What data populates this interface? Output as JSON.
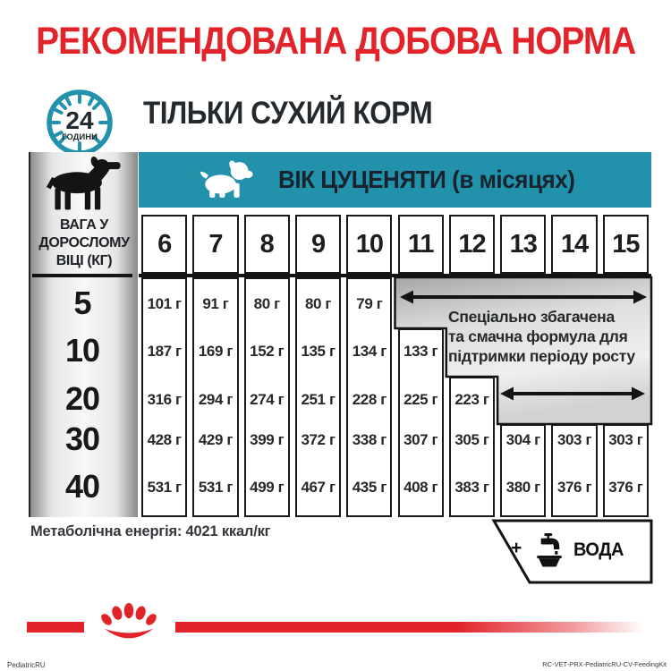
{
  "header": {
    "title": "РЕКОМЕНДОВАНА ДОБОВА НОРМА",
    "clock": {
      "number": "24",
      "caption": "ГОДИНИ"
    },
    "subtitle": "ТІЛЬКИ СУХИЙ КОРМ"
  },
  "table": {
    "corner_label_lines": [
      "ВАГА У",
      "ДОРОСЛОМУ",
      "ВІЦІ (КГ)"
    ],
    "age_header": "ВІК ЦУЦЕНЯТИ (в місяцях)",
    "months": [
      "6",
      "7",
      "8",
      "9",
      "10",
      "11",
      "12",
      "13",
      "14",
      "15"
    ],
    "weights": [
      "5",
      "10",
      "20",
      "30",
      "40"
    ],
    "values": [
      [
        "101 г",
        "91 г",
        "80 г",
        "80 г",
        "79 г",
        "",
        "",
        "",
        "",
        ""
      ],
      [
        "187 г",
        "169 г",
        "152 г",
        "135 г",
        "134 г",
        "133 г",
        "",
        "",
        "",
        ""
      ],
      [
        "316 г",
        "294 г",
        "274 г",
        "251 г",
        "228 г",
        "225 г",
        "223 г",
        "",
        "",
        ""
      ],
      [
        "428 г",
        "429 г",
        "399 г",
        "372 г",
        "338 г",
        "307 г",
        "305 г",
        "304 г",
        "303 г",
        "303 г"
      ],
      [
        "531 г",
        "531 г",
        "499 г",
        "467 г",
        "435 г",
        "408 г",
        "383 г",
        "380 г",
        "376 г",
        "376 г"
      ]
    ],
    "callout_lines": [
      "Спеціально збагачена",
      "та смачна формула для",
      "підтримки періоду росту"
    ]
  },
  "footer": {
    "energy_note": "Метаболічна енергія: 4021 ккал/кг",
    "water_plus": "+",
    "water_label": "ВОДА",
    "fineprint_left": "PediatricRU",
    "fineprint_right": "RC-VET-PRX-PediatricRU-CV-FeedingKit"
  },
  "icons": [
    "clock-24h-icon",
    "adult-dog-icon",
    "puppy-icon",
    "water-tap-bowl-icon",
    "royal-canin-crown-icon"
  ],
  "colors": {
    "accent_red": "#e2232a",
    "teal": "#2191ac",
    "dark_text": "#23282d",
    "panel_grey_edge": "#8d8d8d",
    "callout_grey": "#c9c9c9"
  }
}
